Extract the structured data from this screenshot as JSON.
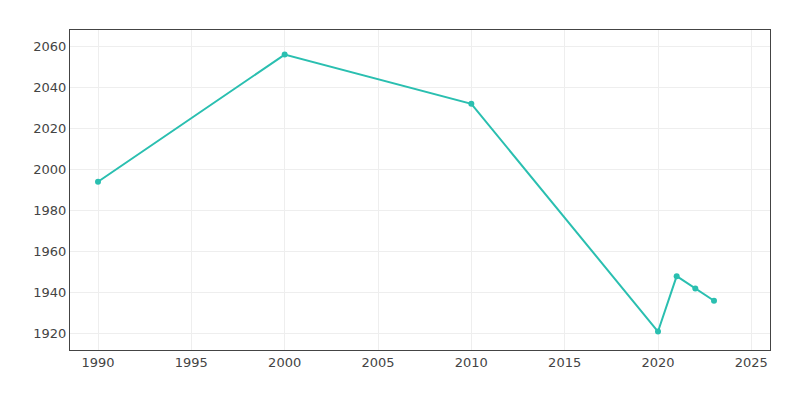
{
  "chart_data": {
    "type": "line",
    "x": [
      1990,
      2000,
      2010,
      2020,
      2021,
      2022,
      2023
    ],
    "values": [
      1994,
      2056,
      2032,
      1921,
      1948,
      1942,
      1936
    ],
    "color": "#2ABFB0",
    "marker": "circle",
    "xlim": [
      1988.5,
      2026
    ],
    "ylim": [
      1912,
      2068
    ],
    "xticks": [
      1990,
      1995,
      2000,
      2005,
      2010,
      2015,
      2020,
      2025
    ],
    "yticks": [
      1920,
      1940,
      1960,
      1980,
      2000,
      2020,
      2040,
      2060
    ],
    "grid": true
  }
}
